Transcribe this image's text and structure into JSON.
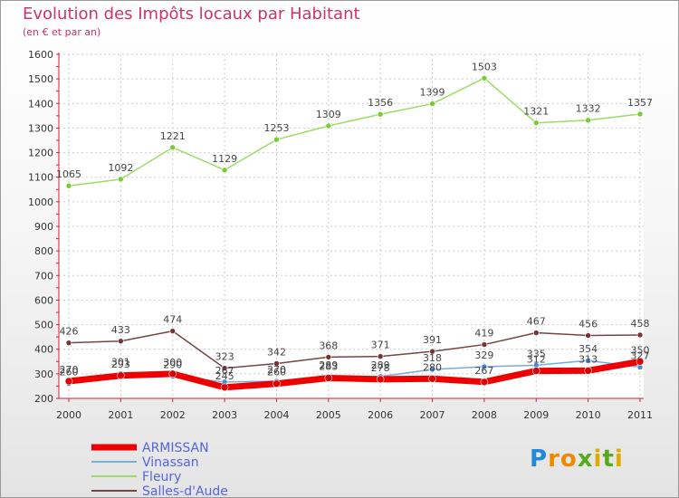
{
  "chart_data": {
    "type": "line",
    "title": "Evolution des Impôts locaux par Habitant",
    "subtitle": "(en € et par an)",
    "xlabel": "",
    "ylabel": "",
    "categories": [
      "2000",
      "2001",
      "2002",
      "2003",
      "2004",
      "2005",
      "2006",
      "2007",
      "2008",
      "2009",
      "2010",
      "2011"
    ],
    "ylim": [
      200,
      1600
    ],
    "yticks": [
      200,
      300,
      400,
      500,
      600,
      700,
      800,
      900,
      1000,
      1100,
      1200,
      1300,
      1400,
      1500,
      1600
    ],
    "grid": true,
    "legend_position": "bottom-left",
    "series": [
      {
        "name": "ARMISSAN",
        "color": "#ee0000",
        "marker_color": "#dd0000",
        "values": [
          270,
          293,
          300,
          245,
          260,
          283,
          278,
          280,
          267,
          312,
          313,
          350
        ]
      },
      {
        "name": "Vinassan",
        "color": "#77aadd",
        "marker_color": "#4488dd",
        "values": [
          260,
          301,
          290,
          267,
          270,
          289,
          289,
          318,
          329,
          335,
          354,
          327
        ]
      },
      {
        "name": "Fleury",
        "color": "#99dd66",
        "marker_color": "#77cc33",
        "values": [
          1065,
          1092,
          1221,
          1129,
          1253,
          1309,
          1356,
          1399,
          1503,
          1321,
          1332,
          1357
        ]
      },
      {
        "name": "Salles-d'Aude",
        "color": "#774444",
        "marker_color": "#773333",
        "values": [
          426,
          433,
          474,
          323,
          342,
          368,
          371,
          391,
          419,
          467,
          456,
          458
        ]
      }
    ]
  },
  "logo": {
    "letters": [
      "P",
      "r",
      "o",
      "x",
      "i",
      "t",
      "i"
    ],
    "colors": [
      "#2288dd",
      "#ee8800",
      "#ee8800",
      "#55aa22",
      "#ddaa00",
      "#55aa22",
      "#ddaa00"
    ]
  }
}
